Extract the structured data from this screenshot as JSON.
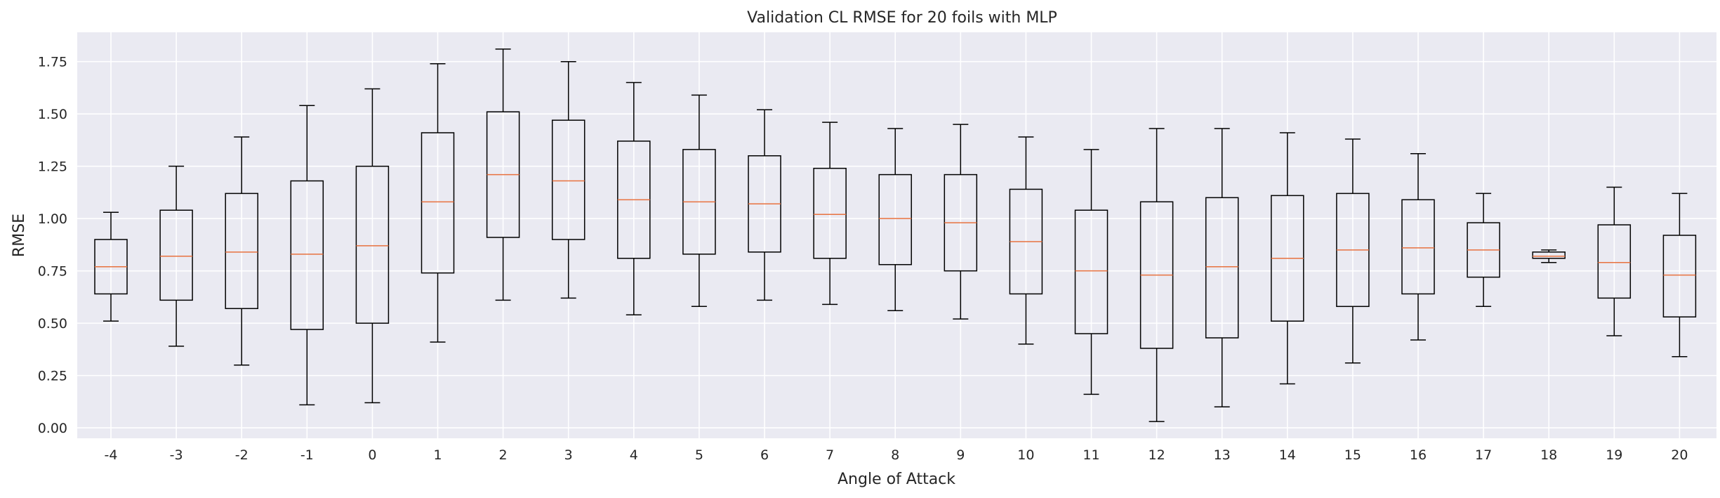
{
  "chart_data": {
    "type": "box",
    "title": "Validation CL RMSE for 20 foils with MLP",
    "xlabel": "Angle of Attack",
    "ylabel": "RMSE",
    "ylim": [
      -0.05,
      1.89
    ],
    "yticks": [
      "0.00",
      "0.25",
      "0.50",
      "0.75",
      "1.00",
      "1.25",
      "1.50",
      "1.75"
    ],
    "grid": true,
    "categories": [
      "-4",
      "-3",
      "-2",
      "-1",
      "0",
      "1",
      "2",
      "3",
      "4",
      "5",
      "6",
      "7",
      "8",
      "9",
      "10",
      "11",
      "12",
      "13",
      "14",
      "15",
      "16",
      "17",
      "18",
      "19",
      "20"
    ],
    "boxes": [
      {
        "whislo": 0.51,
        "q1": 0.64,
        "med": 0.77,
        "q3": 0.9,
        "whishi": 1.03
      },
      {
        "whislo": 0.39,
        "q1": 0.61,
        "med": 0.82,
        "q3": 1.04,
        "whishi": 1.25
      },
      {
        "whislo": 0.3,
        "q1": 0.57,
        "med": 0.84,
        "q3": 1.12,
        "whishi": 1.39
      },
      {
        "whislo": 0.11,
        "q1": 0.47,
        "med": 0.83,
        "q3": 1.18,
        "whishi": 1.54
      },
      {
        "whislo": 0.12,
        "q1": 0.5,
        "med": 0.87,
        "q3": 1.25,
        "whishi": 1.62
      },
      {
        "whislo": 0.41,
        "q1": 0.74,
        "med": 1.08,
        "q3": 1.41,
        "whishi": 1.74
      },
      {
        "whislo": 0.61,
        "q1": 0.91,
        "med": 1.21,
        "q3": 1.51,
        "whishi": 1.81
      },
      {
        "whislo": 0.62,
        "q1": 0.9,
        "med": 1.18,
        "q3": 1.47,
        "whishi": 1.75
      },
      {
        "whislo": 0.54,
        "q1": 0.81,
        "med": 1.09,
        "q3": 1.37,
        "whishi": 1.65
      },
      {
        "whislo": 0.58,
        "q1": 0.83,
        "med": 1.08,
        "q3": 1.33,
        "whishi": 1.59
      },
      {
        "whislo": 0.61,
        "q1": 0.84,
        "med": 1.07,
        "q3": 1.3,
        "whishi": 1.52
      },
      {
        "whislo": 0.59,
        "q1": 0.81,
        "med": 1.02,
        "q3": 1.24,
        "whishi": 1.46
      },
      {
        "whislo": 0.56,
        "q1": 0.78,
        "med": 1.0,
        "q3": 1.21,
        "whishi": 1.43
      },
      {
        "whislo": 0.52,
        "q1": 0.75,
        "med": 0.98,
        "q3": 1.21,
        "whishi": 1.45
      },
      {
        "whislo": 0.4,
        "q1": 0.64,
        "med": 0.89,
        "q3": 1.14,
        "whishi": 1.39
      },
      {
        "whislo": 0.16,
        "q1": 0.45,
        "med": 0.75,
        "q3": 1.04,
        "whishi": 1.33
      },
      {
        "whislo": 0.03,
        "q1": 0.38,
        "med": 0.73,
        "q3": 1.08,
        "whishi": 1.43
      },
      {
        "whislo": 0.1,
        "q1": 0.43,
        "med": 0.77,
        "q3": 1.1,
        "whishi": 1.43
      },
      {
        "whislo": 0.21,
        "q1": 0.51,
        "med": 0.81,
        "q3": 1.11,
        "whishi": 1.41
      },
      {
        "whislo": 0.31,
        "q1": 0.58,
        "med": 0.85,
        "q3": 1.12,
        "whishi": 1.38
      },
      {
        "whislo": 0.42,
        "q1": 0.64,
        "med": 0.86,
        "q3": 1.09,
        "whishi": 1.31
      },
      {
        "whislo": 0.58,
        "q1": 0.72,
        "med": 0.85,
        "q3": 0.98,
        "whishi": 1.12
      },
      {
        "whislo": 0.79,
        "q1": 0.81,
        "med": 0.82,
        "q3": 0.84,
        "whishi": 0.85
      },
      {
        "whislo": 0.44,
        "q1": 0.62,
        "med": 0.79,
        "q3": 0.97,
        "whishi": 1.15
      },
      {
        "whislo": 0.34,
        "q1": 0.53,
        "med": 0.73,
        "q3": 0.92,
        "whishi": 1.12
      }
    ],
    "colors": {
      "background": "#eaeaf2",
      "grid": "#ffffff",
      "box": "#000000",
      "median": "#e8723f",
      "text": "#262626"
    }
  }
}
